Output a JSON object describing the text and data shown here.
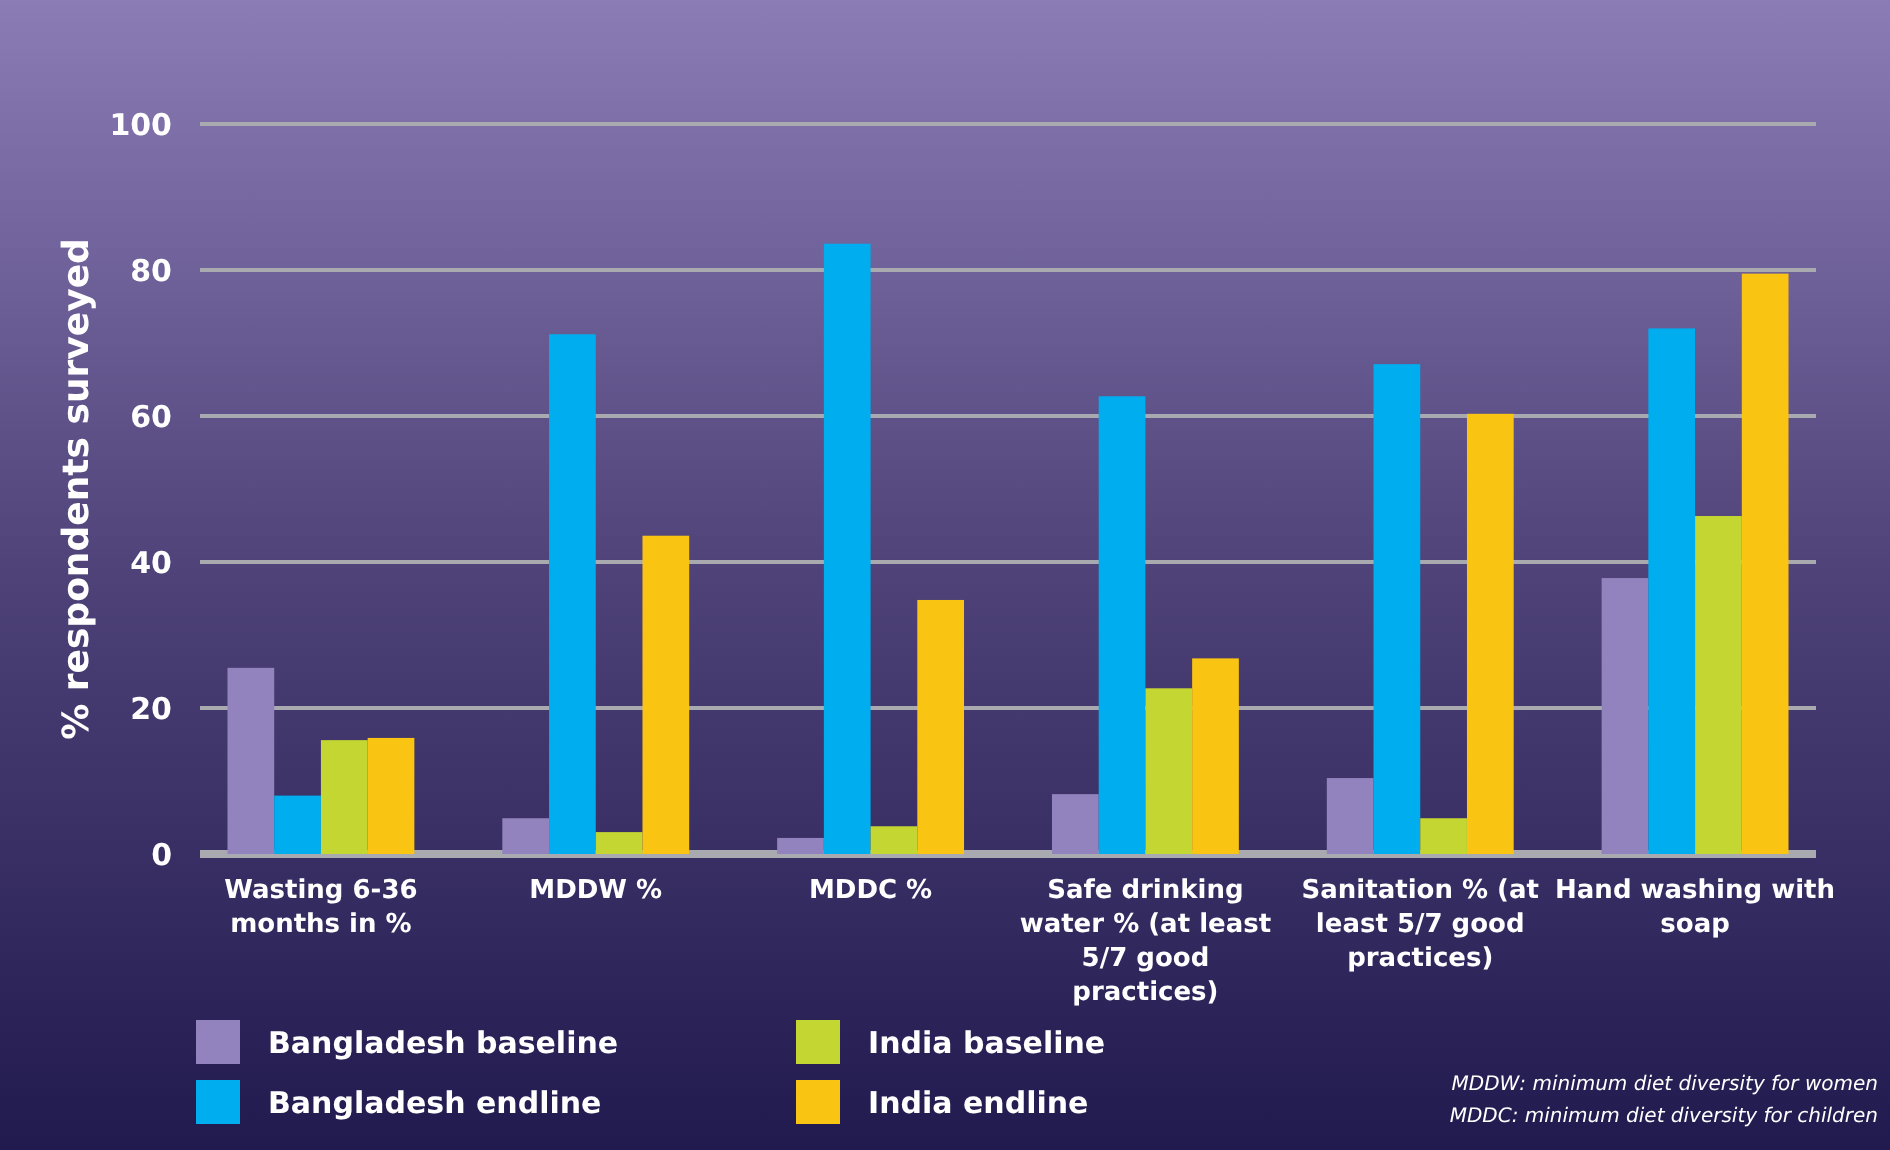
{
  "chart_data": {
    "type": "bar",
    "ylabel": "% respondents surveyed",
    "categories": [
      "Wasting 6-36 months in %",
      "MDDW %",
      "MDDC %",
      "Safe drinking water % (at least 5/7 good practices)",
      "Sanitation % (at least 5/7 good practices)",
      "Hand washing with soap"
    ],
    "series": [
      {
        "name": "Bangladesh baseline",
        "color": "#9283be",
        "values": [
          25.5,
          4.9,
          2.2,
          8.2,
          10.4,
          37.8
        ]
      },
      {
        "name": "Bangladesh endline",
        "color": "#00aeef",
        "values": [
          8,
          71.2,
          83.6,
          62.7,
          67.1,
          72
        ]
      },
      {
        "name": "India baseline",
        "color": "#c4d632",
        "values": [
          15.6,
          3,
          3.8,
          22.7,
          4.9,
          46.3
        ]
      },
      {
        "name": "India endline",
        "color": "#f9c412",
        "values": [
          15.9,
          43.6,
          34.8,
          26.8,
          60.3,
          79.5
        ]
      }
    ],
    "ylim": [
      0,
      100
    ],
    "yticks": [
      0,
      20,
      40,
      60,
      80,
      100
    ],
    "grid": "y",
    "legend": "bottom",
    "annotations": [
      "MDDW: minimum diet diversity for women",
      "MDDC: minimum diet diversity for children"
    ]
  }
}
